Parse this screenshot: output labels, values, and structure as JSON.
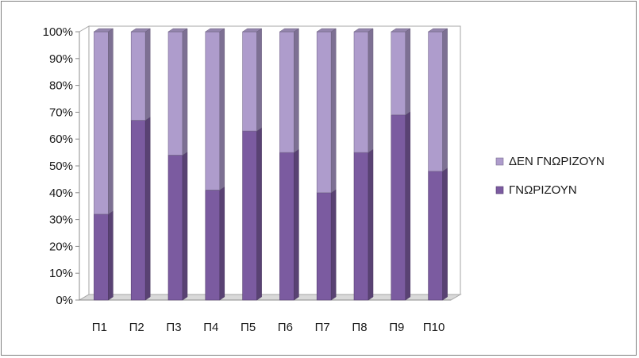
{
  "chart_data": {
    "type": "bar",
    "stacked": true,
    "percent": true,
    "style": "3d",
    "categories": [
      "Π1",
      "Π2",
      "Π3",
      "Π4",
      "Π5",
      "Π6",
      "Π7",
      "Π8",
      "Π9",
      "Π10"
    ],
    "series": [
      {
        "name": "ΓΝΩΡΙΖΟΥΝ",
        "values": [
          32,
          67,
          54,
          41,
          63,
          55,
          40,
          55,
          69,
          48
        ],
        "color": "#7b5ba0"
      },
      {
        "name": "ΔΕΝ ΓΝΩΡΙΖΟΥΝ",
        "values": [
          68,
          33,
          46,
          59,
          37,
          45,
          60,
          45,
          31,
          52
        ],
        "color": "#ae9ccc"
      }
    ],
    "yticks": [
      "0%",
      "10%",
      "20%",
      "30%",
      "40%",
      "50%",
      "60%",
      "70%",
      "80%",
      "90%",
      "100%"
    ],
    "ylim": [
      0,
      100
    ],
    "grid": false,
    "legend_position": "right",
    "legend_order": [
      "ΔΕΝ ΓΝΩΡΙΖΟΥΝ",
      "ΓΝΩΡΙΖΟΥΝ"
    ],
    "title": "",
    "xlabel": "",
    "ylabel": ""
  }
}
